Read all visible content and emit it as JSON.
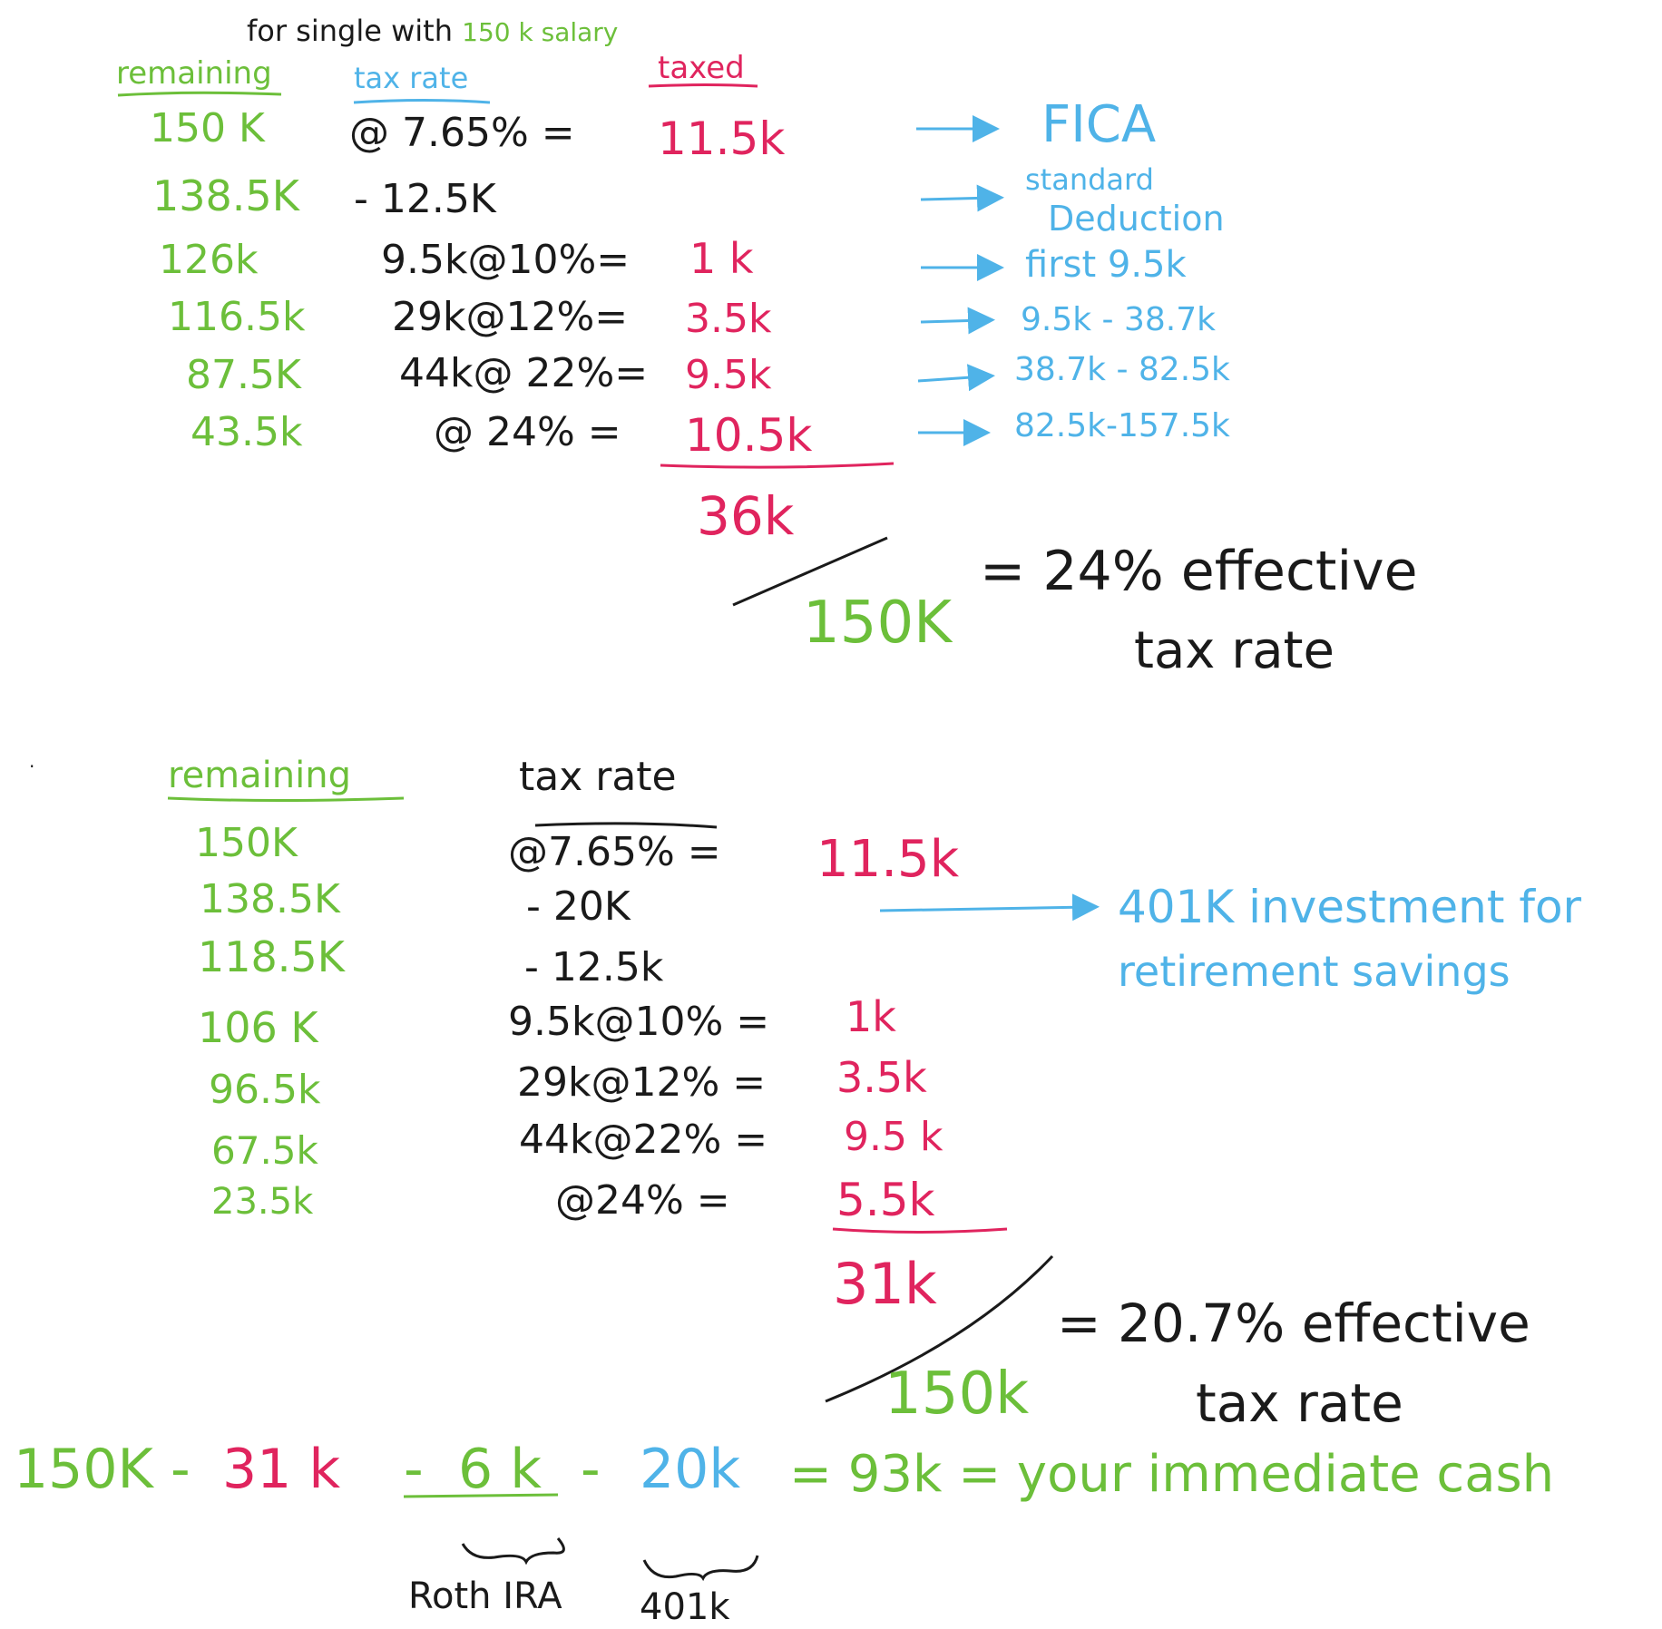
{
  "title": {
    "prefix": "for single with",
    "highlight": "150 k salary"
  },
  "top": {
    "headers": {
      "remaining": "remaining",
      "tax_rate": "tax rate",
      "taxed": "taxed"
    },
    "remaining": [
      "150 K",
      "138.5K",
      "126k",
      "116.5k",
      "87.5K",
      "43.5k"
    ],
    "rates": [
      "@ 7.65% =",
      "- 12.5K",
      "9.5k@10%=",
      "29k@12%=",
      "44k@ 22%=",
      "@ 24% ="
    ],
    "taxed": [
      "11.5k",
      "1 k",
      "3.5k",
      "9.5k",
      "10.5k"
    ],
    "notes": [
      "FICA",
      "standard",
      "Deduction",
      "first 9.5k",
      "9.5k - 38.7k",
      "38.7k - 82.5k",
      "82.5k-157.5k"
    ],
    "total": "36k",
    "denominator": "150K",
    "result_line1": "= 24% effective",
    "result_line2": "tax rate"
  },
  "bottom": {
    "headers": {
      "remaining": "remaining",
      "tax_rate": "tax rate"
    },
    "remaining": [
      "150K",
      "138.5K",
      "118.5K",
      "106 K",
      "96.5k",
      "67.5k",
      "23.5k"
    ],
    "rates": [
      "@7.65% =",
      "- 20K",
      "- 12.5k",
      "9.5k@10% =",
      "29k@12% =",
      "44k@22% =",
      "@24% ="
    ],
    "taxed": [
      "11.5k",
      "1k",
      "3.5k",
      "9.5 k",
      "5.5k"
    ],
    "note_line1": "401K investment for",
    "note_line2": "retirement savings",
    "total": "31k",
    "denominator": "150k",
    "result_line1": "= 20.7% effective",
    "result_line2": "tax rate"
  },
  "equation": {
    "salary": "150K -",
    "tax": "31 k",
    "minus1": "-",
    "roth_amount": "6 k",
    "minus2": "-",
    "k401_amount": "20k",
    "result": "= 93k = your immediate cash",
    "roth_label": "Roth IRA",
    "k401_label": "401k"
  },
  "colors": {
    "black": "#1a1a1a",
    "green": "#6cbf3a",
    "pink": "#e0245e",
    "blue": "#4fb3e8"
  }
}
